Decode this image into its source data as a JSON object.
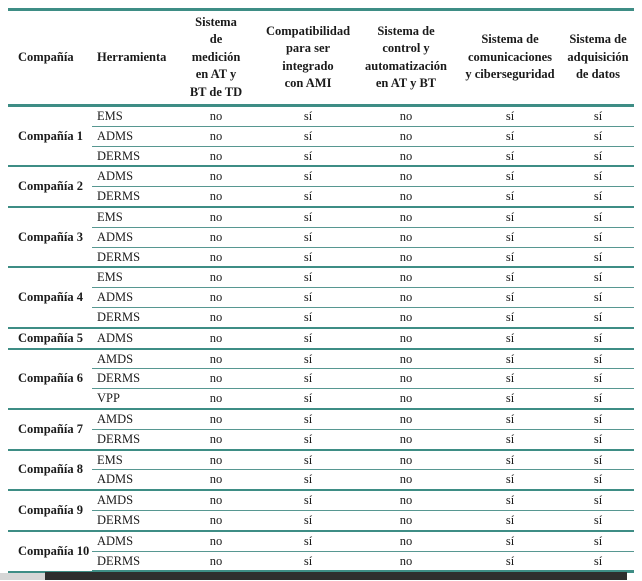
{
  "style": {
    "line_color_strong": "#3E8D85",
    "line_color_light": "#579791",
    "text_color": "#1a1a1a",
    "bottom_bar_dark": "#2e2e2e",
    "bottom_bar_gray": "#d6d6d6"
  },
  "table": {
    "columns": [
      {
        "label": "Compañía"
      },
      {
        "label": "Herramienta"
      },
      {
        "label": "Sistema\nde\nmedición\nen AT y\nBT de TD"
      },
      {
        "label": "Compatibilidad\npara ser\nintegrado\ncon AMI"
      },
      {
        "label": "Sistema de\ncontrol y\nautomatización\nen AT y BT"
      },
      {
        "label": "Sistema de\ncomunicaciones\ny ciberseguridad"
      },
      {
        "label": "Sistema de\nadquisición\nde datos"
      }
    ],
    "groups": [
      {
        "company": "Compañía 1",
        "rows": [
          {
            "tool": "EMS",
            "values": [
              "no",
              "sí",
              "no",
              "sí",
              "sí"
            ]
          },
          {
            "tool": "ADMS",
            "values": [
              "no",
              "sí",
              "no",
              "sí",
              "sí"
            ]
          },
          {
            "tool": "DERMS",
            "values": [
              "no",
              "sí",
              "no",
              "sí",
              "sí"
            ]
          }
        ]
      },
      {
        "company": "Compañía 2",
        "rows": [
          {
            "tool": "ADMS",
            "values": [
              "no",
              "sí",
              "no",
              "sí",
              "sí"
            ]
          },
          {
            "tool": "DERMS",
            "values": [
              "no",
              "sí",
              "no",
              "sí",
              "sí"
            ]
          }
        ]
      },
      {
        "company": "Compañía 3",
        "rows": [
          {
            "tool": "EMS",
            "values": [
              "no",
              "sí",
              "no",
              "sí",
              "sí"
            ]
          },
          {
            "tool": "ADMS",
            "values": [
              "no",
              "sí",
              "no",
              "sí",
              "sí"
            ]
          },
          {
            "tool": "DERMS",
            "values": [
              "no",
              "sí",
              "no",
              "sí",
              "sí"
            ]
          }
        ]
      },
      {
        "company": "Compañía 4",
        "rows": [
          {
            "tool": "EMS",
            "values": [
              "no",
              "sí",
              "no",
              "sí",
              "sí"
            ]
          },
          {
            "tool": "ADMS",
            "values": [
              "no",
              "sí",
              "no",
              "sí",
              "sí"
            ]
          },
          {
            "tool": "DERMS",
            "values": [
              "no",
              "sí",
              "no",
              "sí",
              "sí"
            ]
          }
        ]
      },
      {
        "company": "Compañía 5",
        "rows": [
          {
            "tool": "ADMS",
            "values": [
              "no",
              "sí",
              "no",
              "sí",
              "sí"
            ]
          }
        ]
      },
      {
        "company": "Compañía 6",
        "rows": [
          {
            "tool": "AMDS",
            "values": [
              "no",
              "sí",
              "no",
              "sí",
              "sí"
            ]
          },
          {
            "tool": "DERMS",
            "values": [
              "no",
              "sí",
              "no",
              "sí",
              "sí"
            ]
          },
          {
            "tool": "VPP",
            "values": [
              "no",
              "sí",
              "no",
              "sí",
              "sí"
            ]
          }
        ]
      },
      {
        "company": "Compañía 7",
        "rows": [
          {
            "tool": "AMDS",
            "values": [
              "no",
              "sí",
              "no",
              "sí",
              "sí"
            ]
          },
          {
            "tool": "DERMS",
            "values": [
              "no",
              "sí",
              "no",
              "sí",
              "sí"
            ]
          }
        ]
      },
      {
        "company": "Compañía 8",
        "rows": [
          {
            "tool": "EMS",
            "values": [
              "no",
              "sí",
              "no",
              "sí",
              "sí"
            ]
          },
          {
            "tool": "ADMS",
            "values": [
              "no",
              "sí",
              "no",
              "sí",
              "sí"
            ]
          }
        ]
      },
      {
        "company": "Compañía 9",
        "rows": [
          {
            "tool": "AMDS",
            "values": [
              "no",
              "sí",
              "no",
              "sí",
              "sí"
            ]
          },
          {
            "tool": "DERMS",
            "values": [
              "no",
              "sí",
              "no",
              "sí",
              "sí"
            ]
          }
        ]
      },
      {
        "company": "Compañía 10",
        "rows": [
          {
            "tool": "ADMS",
            "values": [
              "no",
              "sí",
              "no",
              "sí",
              "sí"
            ]
          },
          {
            "tool": "DERMS",
            "values": [
              "no",
              "sí",
              "no",
              "sí",
              "sí"
            ]
          }
        ]
      }
    ]
  }
}
